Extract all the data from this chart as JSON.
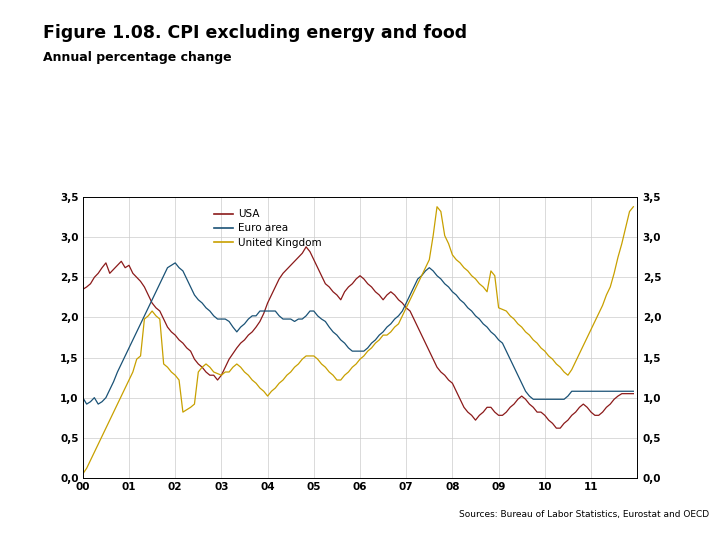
{
  "title": "Figure 1.08. CPI excluding energy and food",
  "subtitle": "Annual percentage change",
  "source": "Sources: Bureau of Labor Statistics, Eurostat and OECD",
  "bg_color": "#ffffff",
  "navy_color": "#1a3669",
  "title_color": "#000000",
  "grid_color": "#cccccc",
  "ylim": [
    0.0,
    3.5
  ],
  "yticks": [
    0.0,
    0.5,
    1.0,
    1.5,
    2.0,
    2.5,
    3.0,
    3.5
  ],
  "ytick_labels": [
    "0,0",
    "0,5",
    "1,0",
    "1,5",
    "2,0",
    "2,5",
    "3,0",
    "3,5"
  ],
  "xtick_labels": [
    "00",
    "01",
    "02",
    "03",
    "04",
    "05",
    "06",
    "07",
    "08",
    "09",
    "10",
    "11"
  ],
  "series": {
    "USA": {
      "color": "#8b1a1a",
      "data": [
        2.35,
        2.38,
        2.42,
        2.5,
        2.55,
        2.62,
        2.68,
        2.55,
        2.6,
        2.65,
        2.7,
        2.62,
        2.65,
        2.55,
        2.5,
        2.45,
        2.38,
        2.28,
        2.18,
        2.12,
        2.08,
        1.98,
        1.88,
        1.82,
        1.78,
        1.72,
        1.68,
        1.62,
        1.58,
        1.48,
        1.42,
        1.38,
        1.32,
        1.28,
        1.28,
        1.22,
        1.28,
        1.38,
        1.48,
        1.55,
        1.62,
        1.68,
        1.72,
        1.78,
        1.82,
        1.88,
        1.95,
        2.05,
        2.18,
        2.28,
        2.38,
        2.48,
        2.55,
        2.6,
        2.65,
        2.7,
        2.75,
        2.8,
        2.88,
        2.82,
        2.72,
        2.62,
        2.52,
        2.42,
        2.38,
        2.32,
        2.28,
        2.22,
        2.32,
        2.38,
        2.42,
        2.48,
        2.52,
        2.48,
        2.42,
        2.38,
        2.32,
        2.28,
        2.22,
        2.28,
        2.32,
        2.28,
        2.22,
        2.18,
        2.12,
        2.08,
        1.98,
        1.88,
        1.78,
        1.68,
        1.58,
        1.48,
        1.38,
        1.32,
        1.28,
        1.22,
        1.18,
        1.08,
        0.98,
        0.88,
        0.82,
        0.78,
        0.72,
        0.78,
        0.82,
        0.88,
        0.88,
        0.82,
        0.78,
        0.78,
        0.82,
        0.88,
        0.92,
        0.98,
        1.02,
        0.98,
        0.92,
        0.88,
        0.82,
        0.82,
        0.78,
        0.72,
        0.68,
        0.62,
        0.62,
        0.68,
        0.72,
        0.78,
        0.82,
        0.88,
        0.92,
        0.88,
        0.82,
        0.78,
        0.78,
        0.82,
        0.88,
        0.92,
        0.98,
        1.02,
        1.05,
        1.05,
        1.05,
        1.05
      ]
    },
    "Euro area": {
      "color": "#1a5276",
      "data": [
        1.0,
        0.92,
        0.95,
        1.0,
        0.92,
        0.95,
        1.0,
        1.1,
        1.2,
        1.32,
        1.42,
        1.52,
        1.62,
        1.72,
        1.82,
        1.92,
        2.02,
        2.12,
        2.22,
        2.32,
        2.42,
        2.52,
        2.62,
        2.65,
        2.68,
        2.62,
        2.58,
        2.48,
        2.38,
        2.28,
        2.22,
        2.18,
        2.12,
        2.08,
        2.02,
        1.98,
        1.98,
        1.98,
        1.95,
        1.88,
        1.82,
        1.88,
        1.92,
        1.98,
        2.02,
        2.02,
        2.08,
        2.08,
        2.08,
        2.08,
        2.08,
        2.02,
        1.98,
        1.98,
        1.98,
        1.95,
        1.98,
        1.98,
        2.02,
        2.08,
        2.08,
        2.02,
        1.98,
        1.95,
        1.88,
        1.82,
        1.78,
        1.72,
        1.68,
        1.62,
        1.58,
        1.58,
        1.58,
        1.58,
        1.62,
        1.68,
        1.72,
        1.78,
        1.82,
        1.88,
        1.92,
        1.98,
        2.02,
        2.08,
        2.18,
        2.28,
        2.38,
        2.48,
        2.52,
        2.58,
        2.62,
        2.58,
        2.52,
        2.48,
        2.42,
        2.38,
        2.32,
        2.28,
        2.22,
        2.18,
        2.12,
        2.08,
        2.02,
        1.98,
        1.92,
        1.88,
        1.82,
        1.78,
        1.72,
        1.68,
        1.58,
        1.48,
        1.38,
        1.28,
        1.18,
        1.08,
        1.02,
        0.98,
        0.98,
        0.98,
        0.98,
        0.98,
        0.98,
        0.98,
        0.98,
        0.98,
        1.02,
        1.08,
        1.08,
        1.08,
        1.08,
        1.08,
        1.08,
        1.08,
        1.08,
        1.08,
        1.08,
        1.08,
        1.08,
        1.08,
        1.08,
        1.08,
        1.08,
        1.08
      ]
    },
    "United Kingdom": {
      "color": "#c8a000",
      "data": [
        0.05,
        0.12,
        0.22,
        0.32,
        0.42,
        0.52,
        0.62,
        0.72,
        0.82,
        0.92,
        1.02,
        1.12,
        1.22,
        1.32,
        1.48,
        1.52,
        1.98,
        2.02,
        2.08,
        2.02,
        1.98,
        1.42,
        1.38,
        1.32,
        1.28,
        1.22,
        0.82,
        0.85,
        0.88,
        0.92,
        1.32,
        1.38,
        1.42,
        1.38,
        1.32,
        1.3,
        1.28,
        1.32,
        1.32,
        1.38,
        1.42,
        1.38,
        1.32,
        1.28,
        1.22,
        1.18,
        1.12,
        1.08,
        1.02,
        1.08,
        1.12,
        1.18,
        1.22,
        1.28,
        1.32,
        1.38,
        1.42,
        1.48,
        1.52,
        1.52,
        1.52,
        1.48,
        1.42,
        1.38,
        1.32,
        1.28,
        1.22,
        1.22,
        1.28,
        1.32,
        1.38,
        1.42,
        1.48,
        1.52,
        1.58,
        1.62,
        1.68,
        1.72,
        1.78,
        1.78,
        1.82,
        1.88,
        1.92,
        2.02,
        2.12,
        2.22,
        2.32,
        2.42,
        2.52,
        2.62,
        2.72,
        3.02,
        3.38,
        3.32,
        3.02,
        2.92,
        2.78,
        2.72,
        2.68,
        2.62,
        2.58,
        2.52,
        2.48,
        2.42,
        2.38,
        2.32,
        2.58,
        2.52,
        2.12,
        2.1,
        2.08,
        2.02,
        1.98,
        1.92,
        1.88,
        1.82,
        1.78,
        1.72,
        1.68,
        1.62,
        1.58,
        1.52,
        1.48,
        1.42,
        1.38,
        1.32,
        1.28,
        1.35,
        1.45,
        1.55,
        1.65,
        1.75,
        1.85,
        1.95,
        2.05,
        2.15,
        2.28,
        2.38,
        2.55,
        2.75,
        2.92,
        3.12,
        3.32,
        3.38
      ]
    }
  }
}
